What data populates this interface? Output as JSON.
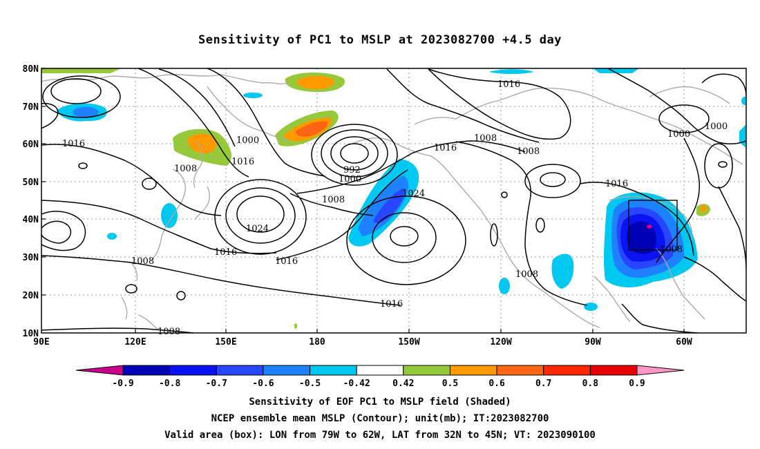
{
  "title": "Sensitivity of PC1 to MSLP at 2023082700 +4.5 day",
  "lat_labels": [
    "80N",
    "70N",
    "60N",
    "50N",
    "40N",
    "30N",
    "20N",
    "10N"
  ],
  "lon_labels": [
    "90E",
    "120E",
    "150E",
    "180",
    "150W",
    "120W",
    "90W",
    "60W"
  ],
  "contour_labels": [
    "1016",
    "1016",
    "1008",
    "1000",
    "1016",
    "992",
    "1000",
    "1008",
    "1024",
    "1024",
    "1016",
    "1016",
    "1008",
    "1008",
    "1016",
    "1008",
    "1000",
    "1000",
    "1016",
    "1008",
    "1008",
    "1016",
    "1008"
  ],
  "colorbar": {
    "labels": [
      "-0.9",
      "-0.8",
      "-0.7",
      "-0.6",
      "-0.5",
      "-0.42",
      "0.42",
      "0.5",
      "0.6",
      "0.7",
      "0.8",
      "0.9"
    ],
    "colors": [
      "#c8008c",
      "#0000b4",
      "#0a14f0",
      "#2846ff",
      "#1e82ff",
      "#00c8f0",
      "#ffffff",
      "#96c83c",
      "#ff9900",
      "#ff6414",
      "#ff2800",
      "#e60000",
      "#ff96c8"
    ]
  },
  "valid_box": {
    "lon_w": -79,
    "lon_e": -62,
    "lat_s": 32,
    "lat_n": 45
  },
  "captions": [
    "Sensitivity of EOF PC1 to MSLP field (Shaded)",
    "NCEP ensemble mean MSLP (Contour); unit(mb); IT:2023082700",
    "Valid area (box): LON from 79W to 62W, LAT from 32N to 45N; VT: 2023090100"
  ]
}
